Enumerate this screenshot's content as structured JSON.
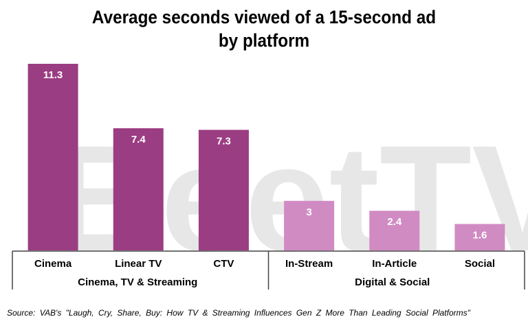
{
  "chart_data": {
    "type": "bar",
    "title": "Average seconds viewed of a 15-second ad by platform",
    "title_lines": [
      "Average seconds viewed of a 15-second ad",
      "by platform"
    ],
    "categories": [
      "Cinema",
      "Linear TV",
      "CTV",
      "In-Stream",
      "In-Article",
      "Social"
    ],
    "values": [
      11.3,
      7.4,
      7.3,
      3,
      2.4,
      1.6
    ],
    "value_labels": [
      "11.3",
      "7.4",
      "7.3",
      "3",
      "2.4",
      "1.6"
    ],
    "groups": [
      {
        "name": "Cinema, TV & Streaming",
        "categories": [
          "Cinema",
          "Linear TV",
          "CTV"
        ],
        "color": "#9b3d82"
      },
      {
        "name": "Digital & Social",
        "categories": [
          "In-Stream",
          "In-Article",
          "Social"
        ],
        "color": "#d18bc3"
      }
    ],
    "xlabel": "",
    "ylabel": "",
    "ylim": [
      0,
      11.3
    ],
    "grid": false,
    "legend": "none"
  },
  "source": "Source: VAB's \"Laugh, Cry, Share, Buy: How TV & Streaming Influences Gen Z More Than Leading Social Platforms\"",
  "watermark": "BeetTV"
}
